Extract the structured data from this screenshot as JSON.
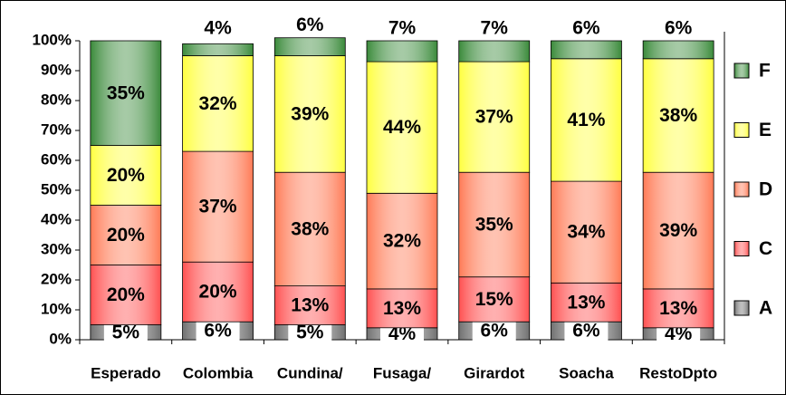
{
  "chart_data": {
    "type": "stacked-bar",
    "categories": [
      "Esperado",
      "Colombia",
      "Cundina/",
      "Fusaga/",
      "Girardot",
      "Soacha",
      "RestoDpto"
    ],
    "series": [
      {
        "name": "A",
        "color": "#707070",
        "values": [
          5,
          6,
          5,
          4,
          6,
          6,
          4
        ],
        "value_labels": [
          "5%",
          "6%",
          "5%",
          "4%",
          "6%",
          "6%",
          "4%"
        ]
      },
      {
        "name": "C",
        "color": "#ff5050",
        "values": [
          20,
          20,
          13,
          13,
          15,
          13,
          13
        ],
        "value_labels": [
          "20%",
          "20%",
          "13%",
          "13%",
          "15%",
          "13%",
          "13%"
        ]
      },
      {
        "name": "D",
        "color": "#ff7a55",
        "values": [
          20,
          37,
          38,
          32,
          35,
          34,
          39
        ],
        "value_labels": [
          "20%",
          "37%",
          "38%",
          "32%",
          "35%",
          "34%",
          "39%"
        ]
      },
      {
        "name": "E",
        "color": "#ffff40",
        "values": [
          20,
          32,
          39,
          44,
          37,
          41,
          38
        ],
        "value_labels": [
          "20%",
          "32%",
          "39%",
          "44%",
          "37%",
          "41%",
          "38%"
        ]
      },
      {
        "name": "F",
        "color": "#3a8a3a",
        "values": [
          35,
          4,
          6,
          7,
          7,
          6,
          6
        ],
        "value_labels": [
          "35%",
          "4%",
          "6%",
          "7%",
          "7%",
          "6%",
          "6%"
        ]
      }
    ],
    "ylim": [
      0,
      100
    ],
    "yticks": [
      {
        "value": 0,
        "label": "0%"
      },
      {
        "value": 10,
        "label": "10%"
      },
      {
        "value": 20,
        "label": "20%"
      },
      {
        "value": 30,
        "label": "30%"
      },
      {
        "value": 40,
        "label": "40%"
      },
      {
        "value": 50,
        "label": "50%"
      },
      {
        "value": 60,
        "label": "60%"
      },
      {
        "value": 70,
        "label": "70%"
      },
      {
        "value": 80,
        "label": "80%"
      },
      {
        "value": 90,
        "label": "90%"
      },
      {
        "value": 100,
        "label": "100%"
      }
    ],
    "legend": "right"
  }
}
